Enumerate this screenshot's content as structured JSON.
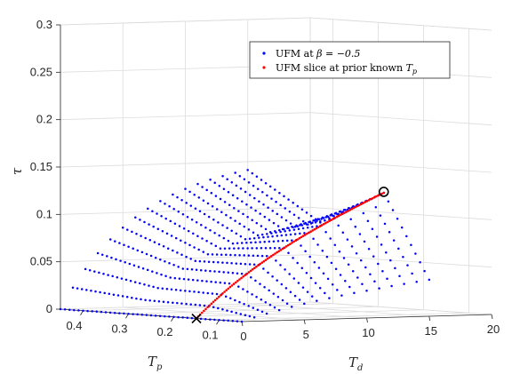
{
  "chart_data": {
    "type": "scatter3d",
    "axes": {
      "x": {
        "label": "T",
        "label_sub": "d",
        "range": [
          0,
          20
        ],
        "ticks": [
          "0",
          "5",
          "10",
          "15",
          "20"
        ]
      },
      "y": {
        "label": "T",
        "label_sub": "p",
        "range": [
          0.05,
          0.45
        ],
        "ticks": [
          "0.1",
          "0.2",
          "0.3",
          "0.4"
        ]
      },
      "z": {
        "label": "τ",
        "range": [
          0,
          0.3
        ],
        "ticks": [
          "0",
          "0.05",
          "0.1",
          "0.15",
          "0.2",
          "0.25",
          "0.3"
        ]
      }
    },
    "grid": true,
    "legend": {
      "placement": "top-right",
      "entries": [
        {
          "label": "UFM at ",
          "math": "β = −0.5",
          "color": "#0000ff"
        },
        {
          "label": "UFM slice at prior known ",
          "math": "T",
          "math_sub": "p",
          "color": "#ff0000"
        }
      ]
    },
    "series": [
      {
        "marker": "point",
        "color": "#0000ff",
        "td_values": [
          0,
          1,
          2,
          3,
          4,
          5,
          6,
          7,
          8,
          9,
          10,
          11,
          12,
          13,
          14,
          15
        ],
        "tp_range": [
          0.05,
          0.45
        ],
        "tp_step": 0.01
      },
      {
        "marker": "point",
        "color": "#ff0000",
        "tp": 0.15,
        "td_range": [
          0,
          15
        ]
      }
    ],
    "annotations": [
      {
        "marker": "circle",
        "color": "#000000",
        "x": 15,
        "y": 0.15,
        "z": 0.128
      },
      {
        "marker": "cross",
        "color": "#000000",
        "x": 0,
        "y": 0.15,
        "z": 0.0
      }
    ]
  }
}
